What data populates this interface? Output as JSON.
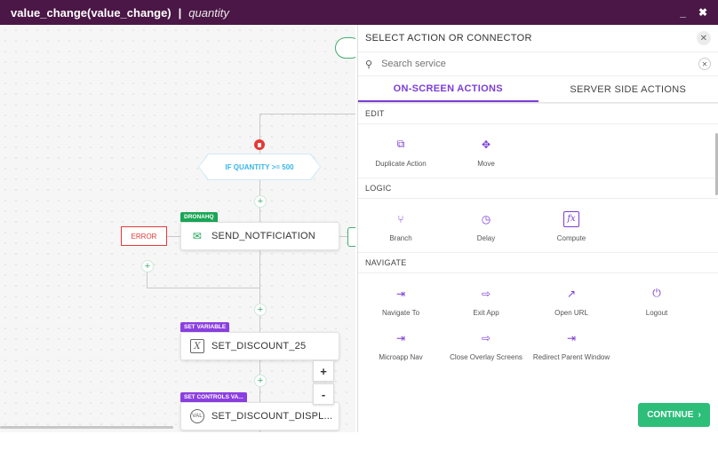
{
  "titlebar": {
    "title": "value_change(value_change)",
    "separator": "|",
    "subtitle": "quantity",
    "minimize": "_",
    "close": "✖"
  },
  "canvas": {
    "condition": "IF QUANTITY >= 500",
    "error_label": "ERROR",
    "node1": {
      "tag": "DRONAHQ",
      "label": "SEND_NOTFICIATION",
      "tag_color": "#1aa656"
    },
    "node2": {
      "tag": "SET VARIABLE",
      "label": "SET_DISCOUNT_25",
      "tag_color": "#8b3fe0"
    },
    "node3": {
      "tag": "SET CONTROLS VA...",
      "label": "SET_DISCOUNT_DISPL...",
      "tag_color": "#8b3fe0"
    },
    "zoom_in": "+",
    "zoom_out": "-",
    "plus": "+"
  },
  "panel": {
    "title": "SELECT ACTION OR CONNECTOR",
    "close": "✕",
    "search_placeholder": "Search service",
    "tabs": [
      {
        "label": "ON-SCREEN ACTIONS"
      },
      {
        "label": "SERVER SIDE ACTIONS"
      }
    ],
    "sections": {
      "edit": {
        "title": "EDIT",
        "items": [
          {
            "label": "Duplicate Action",
            "icon": "duplicate-icon"
          },
          {
            "label": "Move",
            "icon": "move-icon"
          }
        ]
      },
      "logic": {
        "title": "LOGIC",
        "items": [
          {
            "label": "Branch",
            "icon": "branch-icon"
          },
          {
            "label": "Delay",
            "icon": "delay-icon"
          },
          {
            "label": "Compute",
            "icon": "compute-icon"
          }
        ]
      },
      "navigate": {
        "title": "NAVIGATE",
        "items": [
          {
            "label": "Navigate To",
            "icon": "navigate-icon"
          },
          {
            "label": "Exit App",
            "icon": "exit-icon"
          },
          {
            "label": "Open URL",
            "icon": "open-url-icon"
          },
          {
            "label": "Logout",
            "icon": "power-icon"
          },
          {
            "label": "Microapp Nav",
            "icon": "navigate-icon"
          },
          {
            "label": "Close Overlay Screens",
            "icon": "exit-icon"
          },
          {
            "label": "Redirect Parent Window",
            "icon": "navigate-icon"
          }
        ]
      }
    },
    "continue_label": "CONTINUE",
    "accent": "#7b3dd6",
    "continue_color": "#2dbe7a"
  }
}
